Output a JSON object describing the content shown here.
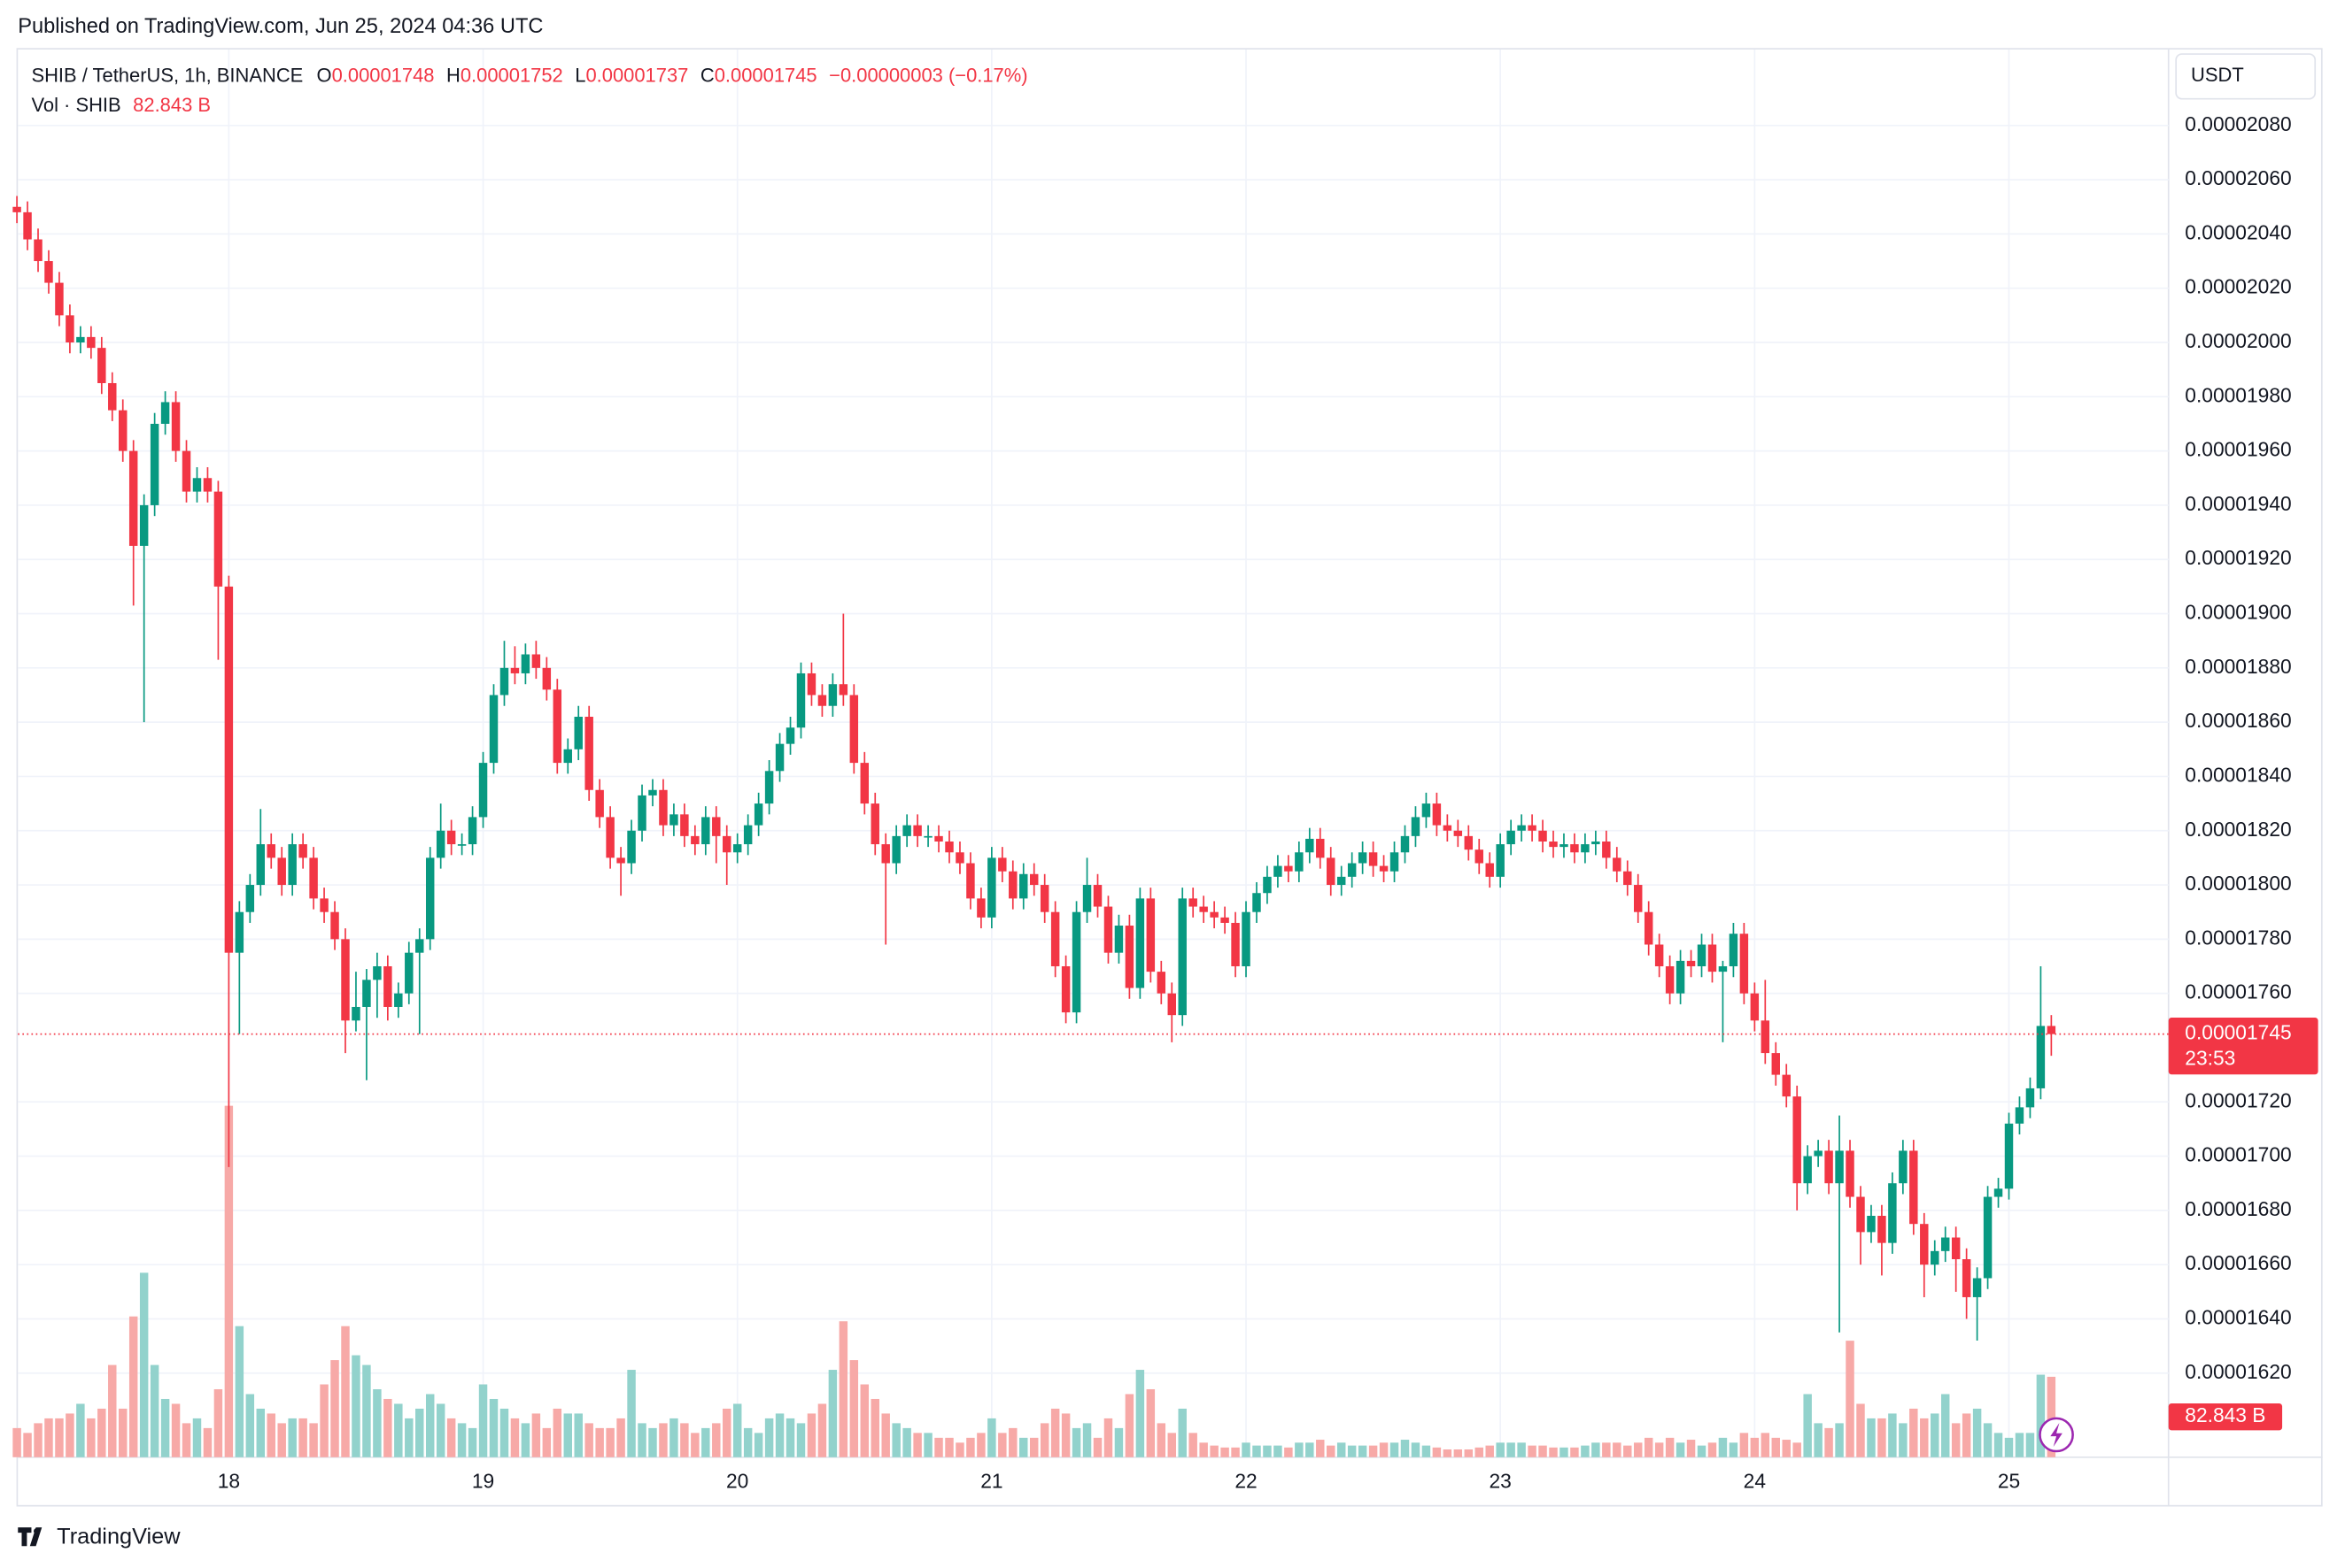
{
  "header": {
    "published": "Published on TradingView.com, Jun 25, 2024 04:36 UTC"
  },
  "footer": {
    "brand": "TradingView"
  },
  "chart_data": {
    "type": "candlestick",
    "title": "SHIB / TetherUS, 1h, BINANCE",
    "legend": {
      "o_label": "O",
      "o": "0.00001748",
      "h_label": "H",
      "h": "0.00001752",
      "l_label": "L",
      "l": "0.00001737",
      "c_label": "C",
      "c": "0.00001745",
      "change": "−0.00000003 (−0.17%)",
      "vol_label": "Vol · SHIB",
      "vol": "82.843 B"
    },
    "currency": "USDT",
    "last_price_label": "0.00001745",
    "countdown": "23:53",
    "volume_value_label": "82.843 B",
    "up_color": "#089981",
    "down_color": "#f23645",
    "volume_up_color": "#92d2cc",
    "volume_down_color": "#f7a9a7",
    "grid": true,
    "ylim": [
      1.589e-05,
      2.108e-05
    ],
    "yticks": [
      {
        "value": 1.62e-05,
        "label": "0.00001620"
      },
      {
        "value": 1.64e-05,
        "label": "0.00001640"
      },
      {
        "value": 1.66e-05,
        "label": "0.00001660"
      },
      {
        "value": 1.68e-05,
        "label": "0.00001680"
      },
      {
        "value": 1.7e-05,
        "label": "0.00001700"
      },
      {
        "value": 1.72e-05,
        "label": "0.00001720"
      },
      {
        "value": 1.76e-05,
        "label": "0.00001760"
      },
      {
        "value": 1.78e-05,
        "label": "0.00001780"
      },
      {
        "value": 1.8e-05,
        "label": "0.00001800"
      },
      {
        "value": 1.82e-05,
        "label": "0.00001820"
      },
      {
        "value": 1.84e-05,
        "label": "0.00001840"
      },
      {
        "value": 1.86e-05,
        "label": "0.00001860"
      },
      {
        "value": 1.88e-05,
        "label": "0.00001880"
      },
      {
        "value": 1.9e-05,
        "label": "0.00001900"
      },
      {
        "value": 1.92e-05,
        "label": "0.00001920"
      },
      {
        "value": 1.94e-05,
        "label": "0.00001940"
      },
      {
        "value": 1.96e-05,
        "label": "0.00001960"
      },
      {
        "value": 1.98e-05,
        "label": "0.00001980"
      },
      {
        "value": 2e-05,
        "label": "0.00002000"
      },
      {
        "value": 2.02e-05,
        "label": "0.00002020"
      },
      {
        "value": 2.04e-05,
        "label": "0.00002040"
      },
      {
        "value": 2.06e-05,
        "label": "0.00002060"
      },
      {
        "value": 2.08e-05,
        "label": "0.00002080"
      }
    ],
    "volume_ylim": [
      0,
      1450
    ],
    "categories": [
      null,
      null,
      null,
      null,
      null,
      null,
      null,
      null,
      null,
      null,
      null,
      null,
      null,
      null,
      null,
      null,
      null,
      null,
      null,
      null,
      "18",
      null,
      null,
      null,
      null,
      null,
      null,
      null,
      null,
      null,
      null,
      null,
      null,
      null,
      null,
      null,
      null,
      null,
      null,
      null,
      null,
      null,
      null,
      null,
      "19",
      null,
      null,
      null,
      null,
      null,
      null,
      null,
      null,
      null,
      null,
      null,
      null,
      null,
      null,
      null,
      null,
      null,
      null,
      null,
      null,
      null,
      null,
      null,
      "20",
      null,
      null,
      null,
      null,
      null,
      null,
      null,
      null,
      null,
      null,
      null,
      null,
      null,
      null,
      null,
      null,
      null,
      null,
      null,
      null,
      null,
      null,
      null,
      "21",
      null,
      null,
      null,
      null,
      null,
      null,
      null,
      null,
      null,
      null,
      null,
      null,
      null,
      null,
      null,
      null,
      null,
      null,
      null,
      null,
      null,
      null,
      null,
      "22",
      null,
      null,
      null,
      null,
      null,
      null,
      null,
      null,
      null,
      null,
      null,
      null,
      null,
      null,
      null,
      null,
      null,
      null,
      null,
      null,
      null,
      null,
      null,
      "23",
      null,
      null,
      null,
      null,
      null,
      null,
      null,
      null,
      null,
      null,
      null,
      null,
      null,
      null,
      null,
      null,
      null,
      null,
      null,
      null,
      null,
      null,
      null,
      "24",
      null,
      null,
      null,
      null,
      null,
      null,
      null,
      null,
      null,
      null,
      null,
      null,
      null,
      null,
      null,
      null,
      null,
      null,
      null,
      null,
      null,
      null,
      null,
      "25",
      null,
      null,
      null,
      null
    ],
    "open": [
      2.05e-05,
      2.048e-05,
      2.038e-05,
      2.03e-05,
      2.022e-05,
      2.01e-05,
      2e-05,
      2.002e-05,
      1.998e-05,
      1.985e-05,
      1.975e-05,
      1.96e-05,
      1.925e-05,
      1.94e-05,
      1.97e-05,
      1.978e-05,
      1.96e-05,
      1.945e-05,
      1.95e-05,
      1.945e-05,
      1.91e-05,
      1.775e-05,
      1.79e-05,
      1.8e-05,
      1.815e-05,
      1.81e-05,
      1.8e-05,
      1.815e-05,
      1.81e-05,
      1.795e-05,
      1.79e-05,
      1.78e-05,
      1.75e-05,
      1.755e-05,
      1.765e-05,
      1.77e-05,
      1.755e-05,
      1.76e-05,
      1.775e-05,
      1.78e-05,
      1.81e-05,
      1.82e-05,
      1.815e-05,
      1.815e-05,
      1.825e-05,
      1.845e-05,
      1.87e-05,
      1.88e-05,
      1.878e-05,
      1.885e-05,
      1.88e-05,
      1.872e-05,
      1.845e-05,
      1.85e-05,
      1.862e-05,
      1.835e-05,
      1.825e-05,
      1.81e-05,
      1.808e-05,
      1.82e-05,
      1.833e-05,
      1.835e-05,
      1.822e-05,
      1.826e-05,
      1.818e-05,
      1.815e-05,
      1.825e-05,
      1.818e-05,
      1.812e-05,
      1.815e-05,
      1.822e-05,
      1.83e-05,
      1.842e-05,
      1.852e-05,
      1.858e-05,
      1.878e-05,
      1.87e-05,
      1.866e-05,
      1.874e-05,
      1.87e-05,
      1.845e-05,
      1.83e-05,
      1.815e-05,
      1.808e-05,
      1.818e-05,
      1.822e-05,
      1.818e-05,
      1.818e-05,
      1.816e-05,
      1.812e-05,
      1.808e-05,
      1.795e-05,
      1.788e-05,
      1.81e-05,
      1.805e-05,
      1.795e-05,
      1.804e-05,
      1.8e-05,
      1.79e-05,
      1.77e-05,
      1.753e-05,
      1.79e-05,
      1.8e-05,
      1.792e-05,
      1.775e-05,
      1.785e-05,
      1.762e-05,
      1.795e-05,
      1.768e-05,
      1.76e-05,
      1.752e-05,
      1.795e-05,
      1.792e-05,
      1.79e-05,
      1.788e-05,
      1.786e-05,
      1.77e-05,
      1.79e-05,
      1.797e-05,
      1.803e-05,
      1.807e-05,
      1.805e-05,
      1.812e-05,
      1.817e-05,
      1.81e-05,
      1.8e-05,
      1.803e-05,
      1.808e-05,
      1.812e-05,
      1.807e-05,
      1.805e-05,
      1.812e-05,
      1.818e-05,
      1.825e-05,
      1.83e-05,
      1.822e-05,
      1.82e-05,
      1.818e-05,
      1.813e-05,
      1.808e-05,
      1.803e-05,
      1.815e-05,
      1.82e-05,
      1.822e-05,
      1.82e-05,
      1.816e-05,
      1.814e-05,
      1.815e-05,
      1.812e-05,
      1.815e-05,
      1.816e-05,
      1.81e-05,
      1.805e-05,
      1.8e-05,
      1.79e-05,
      1.778e-05,
      1.77e-05,
      1.76e-05,
      1.772e-05,
      1.77e-05,
      1.778e-05,
      1.768e-05,
      1.77e-05,
      1.782e-05,
      1.76e-05,
      1.75e-05,
      1.738e-05,
      1.73e-05,
      1.722e-05,
      1.69e-05,
      1.7e-05,
      1.702e-05,
      1.69e-05,
      1.702e-05,
      1.685e-05,
      1.672e-05,
      1.678e-05,
      1.668e-05,
      1.69e-05,
      1.702e-05,
      1.675e-05,
      1.66e-05,
      1.665e-05,
      1.67e-05,
      1.662e-05,
      1.648e-05,
      1.655e-05,
      1.685e-05,
      1.688e-05,
      1.712e-05,
      1.718e-05,
      1.725e-05,
      1.748e-05
    ],
    "high": [
      2.054e-05,
      2.052e-05,
      2.042e-05,
      2.034e-05,
      2.026e-05,
      2.014e-05,
      2.006e-05,
      2.006e-05,
      2.002e-05,
      1.989e-05,
      1.979e-05,
      1.964e-05,
      1.944e-05,
      1.974e-05,
      1.982e-05,
      1.982e-05,
      1.964e-05,
      1.954e-05,
      1.954e-05,
      1.949e-05,
      1.914e-05,
      1.794e-05,
      1.804e-05,
      1.828e-05,
      1.819e-05,
      1.814e-05,
      1.819e-05,
      1.819e-05,
      1.814e-05,
      1.799e-05,
      1.794e-05,
      1.784e-05,
      1.768e-05,
      1.769e-05,
      1.775e-05,
      1.774e-05,
      1.764e-05,
      1.779e-05,
      1.784e-05,
      1.814e-05,
      1.83e-05,
      1.824e-05,
      1.819e-05,
      1.829e-05,
      1.849e-05,
      1.874e-05,
      1.89e-05,
      1.888e-05,
      1.889e-05,
      1.89e-05,
      1.884e-05,
      1.876e-05,
      1.854e-05,
      1.866e-05,
      1.866e-05,
      1.839e-05,
      1.829e-05,
      1.814e-05,
      1.824e-05,
      1.837e-05,
      1.839e-05,
      1.839e-05,
      1.83e-05,
      1.83e-05,
      1.822e-05,
      1.829e-05,
      1.829e-05,
      1.822e-05,
      1.819e-05,
      1.826e-05,
      1.834e-05,
      1.846e-05,
      1.856e-05,
      1.862e-05,
      1.882e-05,
      1.882e-05,
      1.874e-05,
      1.878e-05,
      1.9e-05,
      1.874e-05,
      1.849e-05,
      1.834e-05,
      1.819e-05,
      1.822e-05,
      1.826e-05,
      1.826e-05,
      1.822e-05,
      1.822e-05,
      1.82e-05,
      1.816e-05,
      1.812e-05,
      1.799e-05,
      1.814e-05,
      1.814e-05,
      1.809e-05,
      1.808e-05,
      1.808e-05,
      1.804e-05,
      1.794e-05,
      1.774e-05,
      1.794e-05,
      1.81e-05,
      1.804e-05,
      1.796e-05,
      1.789e-05,
      1.789e-05,
      1.799e-05,
      1.799e-05,
      1.772e-05,
      1.764e-05,
      1.799e-05,
      1.799e-05,
      1.796e-05,
      1.794e-05,
      1.792e-05,
      1.79e-05,
      1.794e-05,
      1.801e-05,
      1.807e-05,
      1.811e-05,
      1.811e-05,
      1.816e-05,
      1.821e-05,
      1.821e-05,
      1.814e-05,
      1.807e-05,
      1.812e-05,
      1.816e-05,
      1.816e-05,
      1.811e-05,
      1.816e-05,
      1.822e-05,
      1.829e-05,
      1.834e-05,
      1.834e-05,
      1.826e-05,
      1.824e-05,
      1.822e-05,
      1.817e-05,
      1.812e-05,
      1.819e-05,
      1.824e-05,
      1.826e-05,
      1.826e-05,
      1.824e-05,
      1.82e-05,
      1.819e-05,
      1.819e-05,
      1.819e-05,
      1.82e-05,
      1.82e-05,
      1.814e-05,
      1.809e-05,
      1.804e-05,
      1.794e-05,
      1.782e-05,
      1.774e-05,
      1.776e-05,
      1.776e-05,
      1.782e-05,
      1.782e-05,
      1.772e-05,
      1.786e-05,
      1.786e-05,
      1.764e-05,
      1.765e-05,
      1.742e-05,
      1.734e-05,
      1.726e-05,
      1.704e-05,
      1.706e-05,
      1.706e-05,
      1.715e-05,
      1.706e-05,
      1.689e-05,
      1.682e-05,
      1.682e-05,
      1.694e-05,
      1.706e-05,
      1.706e-05,
      1.679e-05,
      1.669e-05,
      1.674e-05,
      1.674e-05,
      1.666e-05,
      1.659e-05,
      1.689e-05,
      1.692e-05,
      1.716e-05,
      1.722e-05,
      1.729e-05,
      1.77e-05,
      1.752e-05
    ],
    "low": [
      2.044e-05,
      2.034e-05,
      2.026e-05,
      2.018e-05,
      2.006e-05,
      1.996e-05,
      1.996e-05,
      1.994e-05,
      1.981e-05,
      1.971e-05,
      1.956e-05,
      1.903e-05,
      1.86e-05,
      1.936e-05,
      1.966e-05,
      1.956e-05,
      1.941e-05,
      1.941e-05,
      1.941e-05,
      1.883e-05,
      1.696e-05,
      1.745e-05,
      1.786e-05,
      1.796e-05,
      1.806e-05,
      1.796e-05,
      1.796e-05,
      1.806e-05,
      1.791e-05,
      1.786e-05,
      1.776e-05,
      1.738e-05,
      1.746e-05,
      1.728e-05,
      1.751e-05,
      1.75e-05,
      1.751e-05,
      1.756e-05,
      1.745e-05,
      1.776e-05,
      1.806e-05,
      1.811e-05,
      1.811e-05,
      1.811e-05,
      1.821e-05,
      1.841e-05,
      1.866e-05,
      1.874e-05,
      1.874e-05,
      1.876e-05,
      1.868e-05,
      1.841e-05,
      1.841e-05,
      1.846e-05,
      1.831e-05,
      1.821e-05,
      1.806e-05,
      1.796e-05,
      1.804e-05,
      1.816e-05,
      1.829e-05,
      1.818e-05,
      1.818e-05,
      1.814e-05,
      1.811e-05,
      1.811e-05,
      1.808e-05,
      1.8e-05,
      1.808e-05,
      1.811e-05,
      1.818e-05,
      1.826e-05,
      1.838e-05,
      1.848e-05,
      1.854e-05,
      1.866e-05,
      1.862e-05,
      1.862e-05,
      1.866e-05,
      1.841e-05,
      1.826e-05,
      1.811e-05,
      1.778e-05,
      1.804e-05,
      1.814e-05,
      1.814e-05,
      1.814e-05,
      1.812e-05,
      1.808e-05,
      1.804e-05,
      1.791e-05,
      1.784e-05,
      1.784e-05,
      1.801e-05,
      1.791e-05,
      1.791e-05,
      1.796e-05,
      1.786e-05,
      1.766e-05,
      1.749e-05,
      1.749e-05,
      1.786e-05,
      1.788e-05,
      1.771e-05,
      1.771e-05,
      1.758e-05,
      1.758e-05,
      1.764e-05,
      1.756e-05,
      1.742e-05,
      1.748e-05,
      1.788e-05,
      1.786e-05,
      1.784e-05,
      1.782e-05,
      1.766e-05,
      1.766e-05,
      1.786e-05,
      1.793e-05,
      1.799e-05,
      1.801e-05,
      1.801e-05,
      1.808e-05,
      1.806e-05,
      1.796e-05,
      1.796e-05,
      1.799e-05,
      1.804e-05,
      1.803e-05,
      1.801e-05,
      1.801e-05,
      1.808e-05,
      1.814e-05,
      1.821e-05,
      1.818e-05,
      1.816e-05,
      1.814e-05,
      1.809e-05,
      1.804e-05,
      1.799e-05,
      1.799e-05,
      1.811e-05,
      1.816e-05,
      1.816e-05,
      1.812e-05,
      1.81e-05,
      1.81e-05,
      1.808e-05,
      1.808e-05,
      1.811e-05,
      1.806e-05,
      1.801e-05,
      1.796e-05,
      1.786e-05,
      1.774e-05,
      1.766e-05,
      1.756e-05,
      1.756e-05,
      1.766e-05,
      1.766e-05,
      1.764e-05,
      1.742e-05,
      1.766e-05,
      1.756e-05,
      1.746e-05,
      1.734e-05,
      1.726e-05,
      1.718e-05,
      1.68e-05,
      1.686e-05,
      1.696e-05,
      1.686e-05,
      1.635e-05,
      1.681e-05,
      1.66e-05,
      1.668e-05,
      1.656e-05,
      1.664e-05,
      1.686e-05,
      1.671e-05,
      1.648e-05,
      1.656e-05,
      1.661e-05,
      1.65e-05,
      1.64e-05,
      1.632e-05,
      1.651e-05,
      1.681e-05,
      1.684e-05,
      1.708e-05,
      1.714e-05,
      1.721e-05,
      1.737e-05
    ],
    "close": [
      2.048e-05,
      2.038e-05,
      2.03e-05,
      2.022e-05,
      2.01e-05,
      2e-05,
      2.002e-05,
      1.998e-05,
      1.985e-05,
      1.975e-05,
      1.96e-05,
      1.925e-05,
      1.94e-05,
      1.97e-05,
      1.978e-05,
      1.96e-05,
      1.945e-05,
      1.95e-05,
      1.945e-05,
      1.91e-05,
      1.775e-05,
      1.79e-05,
      1.8e-05,
      1.815e-05,
      1.81e-05,
      1.8e-05,
      1.815e-05,
      1.81e-05,
      1.795e-05,
      1.79e-05,
      1.78e-05,
      1.75e-05,
      1.755e-05,
      1.765e-05,
      1.77e-05,
      1.755e-05,
      1.76e-05,
      1.775e-05,
      1.78e-05,
      1.81e-05,
      1.82e-05,
      1.815e-05,
      1.815e-05,
      1.825e-05,
      1.845e-05,
      1.87e-05,
      1.88e-05,
      1.878e-05,
      1.885e-05,
      1.88e-05,
      1.872e-05,
      1.845e-05,
      1.85e-05,
      1.862e-05,
      1.835e-05,
      1.825e-05,
      1.81e-05,
      1.808e-05,
      1.82e-05,
      1.833e-05,
      1.835e-05,
      1.822e-05,
      1.826e-05,
      1.818e-05,
      1.815e-05,
      1.825e-05,
      1.818e-05,
      1.812e-05,
      1.815e-05,
      1.822e-05,
      1.83e-05,
      1.842e-05,
      1.852e-05,
      1.858e-05,
      1.878e-05,
      1.87e-05,
      1.866e-05,
      1.874e-05,
      1.87e-05,
      1.845e-05,
      1.83e-05,
      1.815e-05,
      1.808e-05,
      1.818e-05,
      1.822e-05,
      1.818e-05,
      1.818e-05,
      1.816e-05,
      1.812e-05,
      1.808e-05,
      1.795e-05,
      1.788e-05,
      1.81e-05,
      1.805e-05,
      1.795e-05,
      1.804e-05,
      1.8e-05,
      1.79e-05,
      1.77e-05,
      1.753e-05,
      1.79e-05,
      1.8e-05,
      1.792e-05,
      1.775e-05,
      1.785e-05,
      1.762e-05,
      1.795e-05,
      1.768e-05,
      1.76e-05,
      1.752e-05,
      1.795e-05,
      1.792e-05,
      1.79e-05,
      1.788e-05,
      1.786e-05,
      1.77e-05,
      1.79e-05,
      1.797e-05,
      1.803e-05,
      1.807e-05,
      1.805e-05,
      1.812e-05,
      1.817e-05,
      1.81e-05,
      1.8e-05,
      1.803e-05,
      1.808e-05,
      1.812e-05,
      1.807e-05,
      1.805e-05,
      1.812e-05,
      1.818e-05,
      1.825e-05,
      1.83e-05,
      1.822e-05,
      1.82e-05,
      1.818e-05,
      1.813e-05,
      1.808e-05,
      1.803e-05,
      1.815e-05,
      1.82e-05,
      1.822e-05,
      1.82e-05,
      1.816e-05,
      1.814e-05,
      1.815e-05,
      1.812e-05,
      1.815e-05,
      1.816e-05,
      1.81e-05,
      1.805e-05,
      1.8e-05,
      1.79e-05,
      1.778e-05,
      1.77e-05,
      1.76e-05,
      1.772e-05,
      1.77e-05,
      1.778e-05,
      1.768e-05,
      1.77e-05,
      1.782e-05,
      1.76e-05,
      1.75e-05,
      1.738e-05,
      1.73e-05,
      1.722e-05,
      1.69e-05,
      1.7e-05,
      1.702e-05,
      1.69e-05,
      1.702e-05,
      1.685e-05,
      1.672e-05,
      1.678e-05,
      1.668e-05,
      1.69e-05,
      1.702e-05,
      1.675e-05,
      1.66e-05,
      1.665e-05,
      1.67e-05,
      1.662e-05,
      1.648e-05,
      1.655e-05,
      1.685e-05,
      1.688e-05,
      1.712e-05,
      1.718e-05,
      1.725e-05,
      1.748e-05,
      1.745e-05
    ],
    "volume": [
      30,
      25,
      35,
      40,
      40,
      45,
      55,
      40,
      50,
      95,
      50,
      145,
      190,
      95,
      60,
      55,
      35,
      40,
      30,
      70,
      362,
      135,
      65,
      50,
      45,
      35,
      40,
      40,
      35,
      75,
      100,
      135,
      105,
      95,
      70,
      60,
      55,
      40,
      50,
      65,
      55,
      40,
      35,
      30,
      75,
      60,
      50,
      40,
      35,
      45,
      30,
      50,
      45,
      45,
      35,
      30,
      30,
      40,
      90,
      35,
      30,
      35,
      40,
      35,
      25,
      30,
      35,
      50,
      55,
      30,
      25,
      40,
      45,
      40,
      35,
      45,
      55,
      90,
      140,
      100,
      75,
      60,
      45,
      35,
      30,
      25,
      25,
      20,
      20,
      15,
      20,
      25,
      40,
      25,
      30,
      20,
      20,
      35,
      50,
      45,
      30,
      35,
      20,
      40,
      30,
      65,
      90,
      70,
      35,
      25,
      50,
      25,
      15,
      12,
      10,
      10,
      15,
      12,
      12,
      12,
      10,
      15,
      15,
      18,
      12,
      15,
      12,
      12,
      12,
      15,
      15,
      18,
      15,
      12,
      10,
      8,
      8,
      8,
      10,
      12,
      15,
      15,
      15,
      12,
      12,
      10,
      10,
      10,
      12,
      15,
      15,
      15,
      12,
      15,
      20,
      15,
      20,
      15,
      18,
      12,
      15,
      20,
      15,
      25,
      20,
      25,
      20,
      18,
      15,
      65,
      35,
      30,
      35,
      120,
      55,
      40,
      40,
      45,
      35,
      50,
      40,
      45,
      65,
      35,
      45,
      50,
      35,
      25,
      20,
      25,
      25,
      85,
      82.843
    ]
  }
}
